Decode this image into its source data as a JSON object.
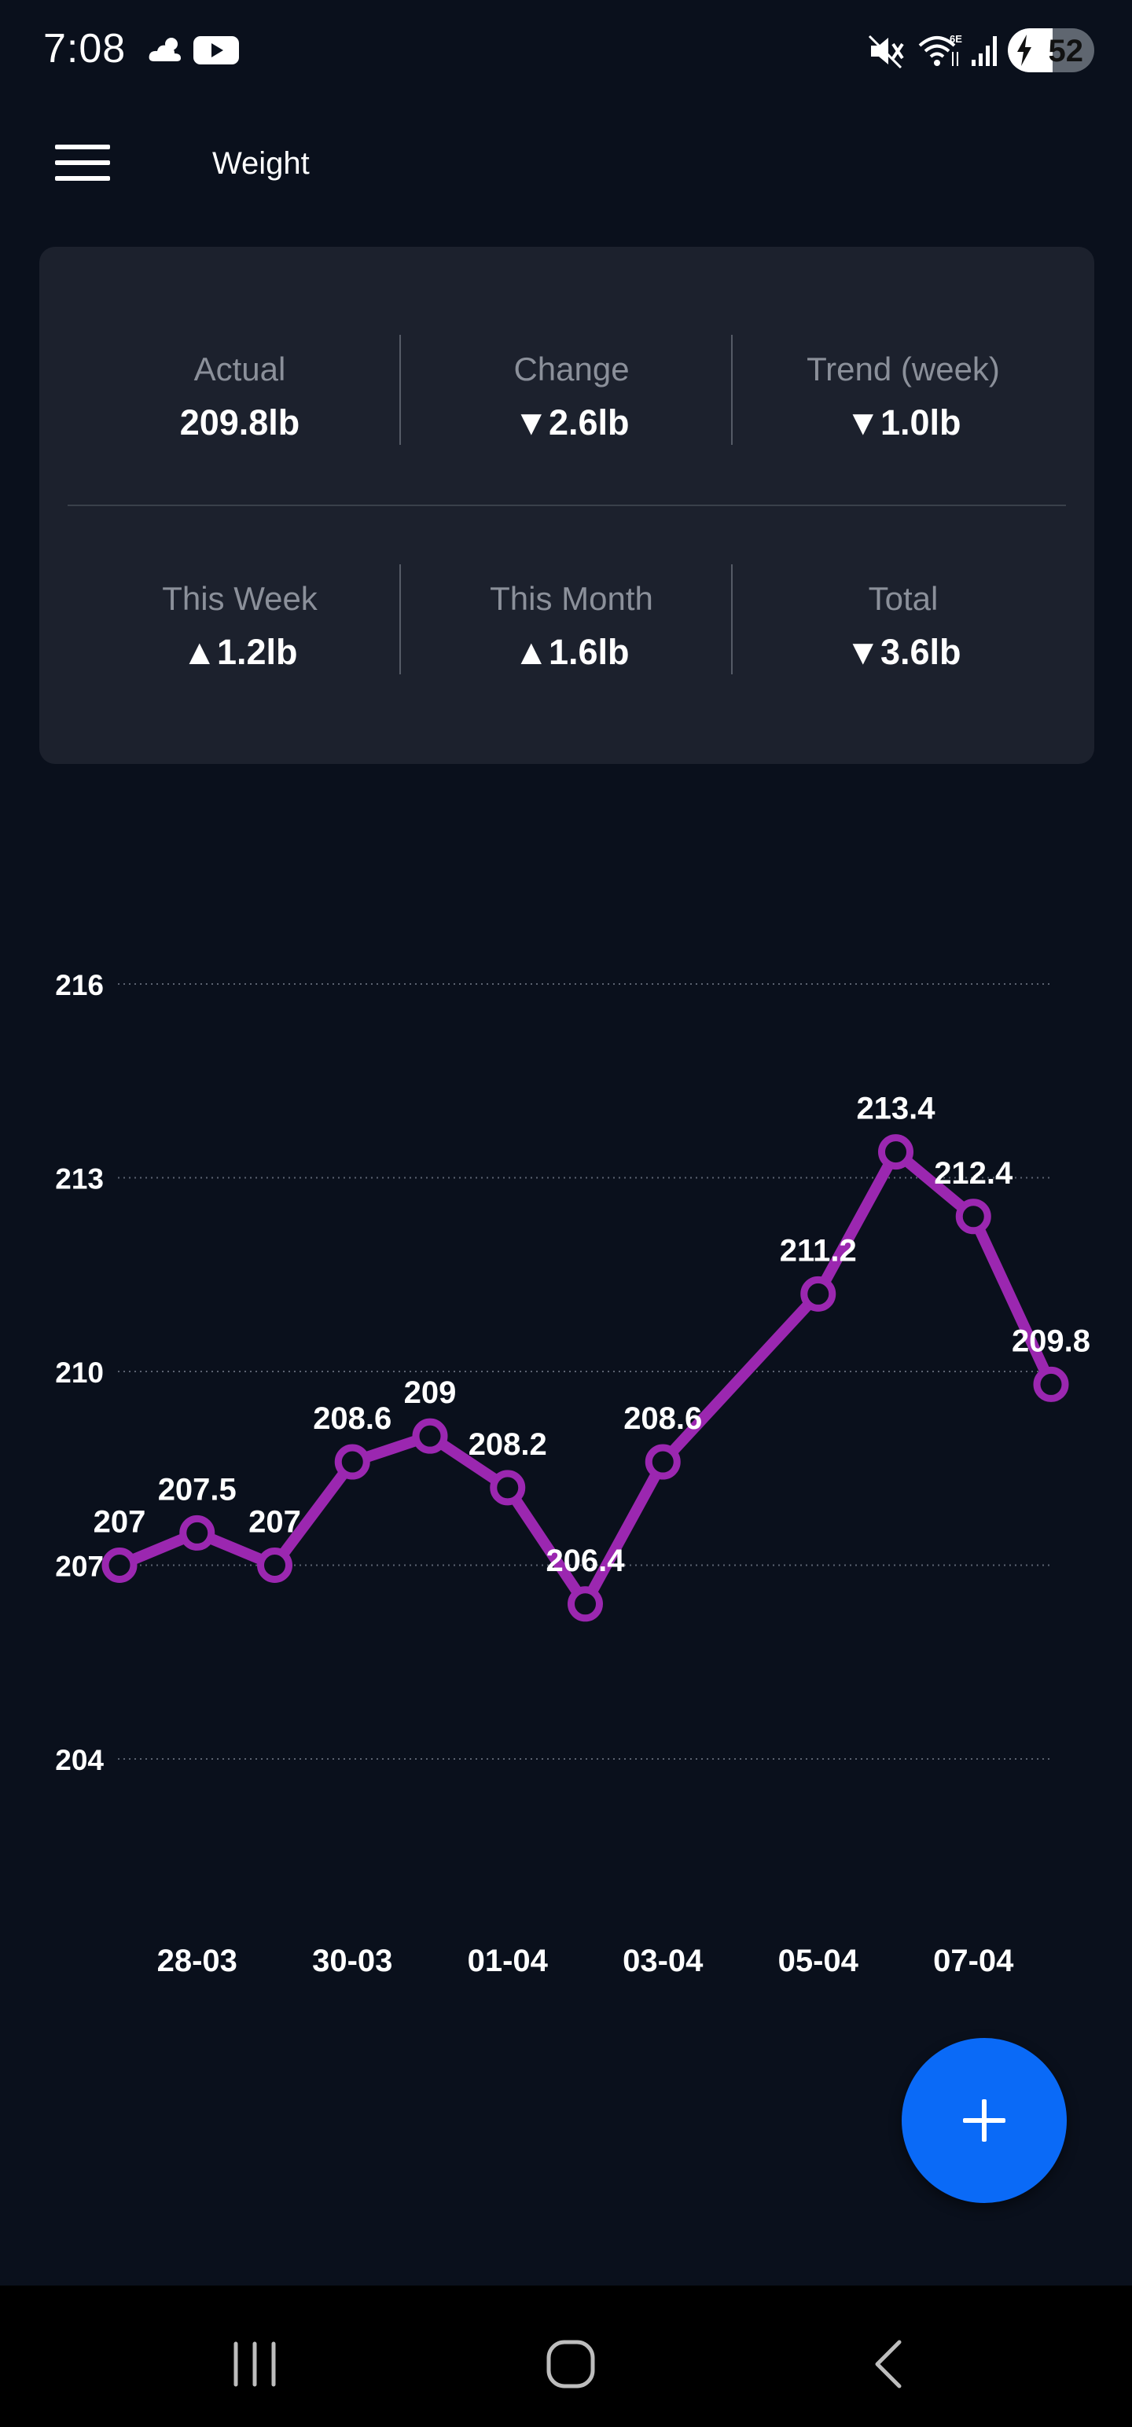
{
  "status_bar": {
    "time": "7:08",
    "battery_level": "52",
    "battery_fraction": 0.52,
    "icons": [
      "weather-icon",
      "youtube-icon",
      "mute-icon",
      "wifi-6e-icon",
      "signal-icon",
      "charging-icon"
    ]
  },
  "app_bar": {
    "title": "Weight"
  },
  "stats": {
    "actual": {
      "label": "Actual",
      "value": "209.8lb"
    },
    "change": {
      "label": "Change",
      "value": "▼2.6lb"
    },
    "trend_week": {
      "label": "Trend (week)",
      "value": "▼1.0lb"
    },
    "this_week": {
      "label": "This Week",
      "value": "▲1.2lb"
    },
    "this_month": {
      "label": "This Month",
      "value": "▲1.6lb"
    },
    "total": {
      "label": "Total",
      "value": "▼3.6lb"
    }
  },
  "chart_data": {
    "type": "line",
    "x": [
      "27-03",
      "28-03",
      "29-03",
      "30-03",
      "31-03",
      "01-04",
      "02-04",
      "03-04",
      "04-04",
      "05-04",
      "06-04",
      "07-04",
      "08-04"
    ],
    "y": [
      207,
      207.5,
      207,
      208.6,
      209,
      208.2,
      206.4,
      208.6,
      null,
      211.2,
      213.4,
      212.4,
      209.8
    ],
    "point_labels": [
      "207",
      "207.5",
      "207",
      "208.6",
      "209",
      "208.2",
      "206.4",
      "208.6",
      "",
      "211.2",
      "213.4",
      "212.4",
      "209.8"
    ],
    "x_tick_labels": [
      "28-03",
      "30-03",
      "01-04",
      "03-04",
      "05-04",
      "07-04"
    ],
    "y_ticks": [
      204,
      207,
      210,
      213,
      216
    ],
    "y_tick_labels": [
      "204",
      "207",
      "210",
      "213",
      "216"
    ],
    "ylim": [
      204,
      216
    ],
    "grid": "horizontal dotted",
    "line_color": "#9b27b0"
  },
  "fab": {
    "icon": "plus-icon",
    "color": "#0a6af7"
  },
  "nav_bar": {
    "buttons": [
      "recent-apps-icon",
      "home-icon",
      "back-icon"
    ]
  }
}
